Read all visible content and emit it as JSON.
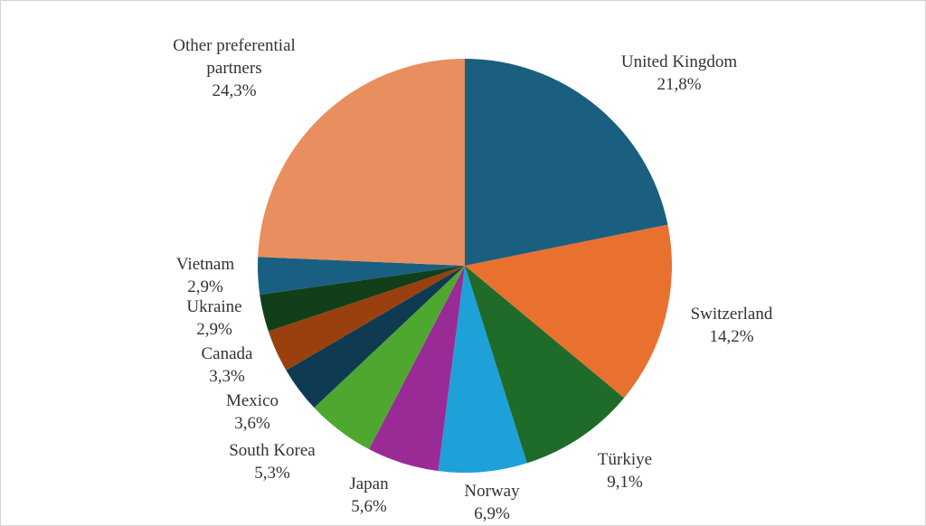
{
  "chart_data": {
    "type": "pie",
    "categories": [
      "United Kingdom",
      "Switzerland",
      "Türkiye",
      "Norway",
      "Japan",
      "South Korea",
      "Mexico",
      "Canada",
      "Ukraine",
      "Vietnam",
      "Other preferential partners"
    ],
    "values": [
      21.8,
      14.2,
      9.1,
      6.9,
      5.6,
      5.3,
      3.6,
      3.3,
      2.9,
      2.9,
      24.3
    ],
    "value_labels": [
      "21,8%",
      "14,2%",
      "9,1%",
      "6,9%",
      "5,6%",
      "5,3%",
      "3,6%",
      "3,3%",
      "2,9%",
      "2,9%",
      "24,3%"
    ],
    "colors": [
      "#1a5e80",
      "#e8712f",
      "#1e6b2a",
      "#1ea0d8",
      "#9a2a96",
      "#4ea830",
      "#0f3b52",
      "#9a400e",
      "#123f1a",
      "#195f82",
      "#e98e5e"
    ]
  }
}
